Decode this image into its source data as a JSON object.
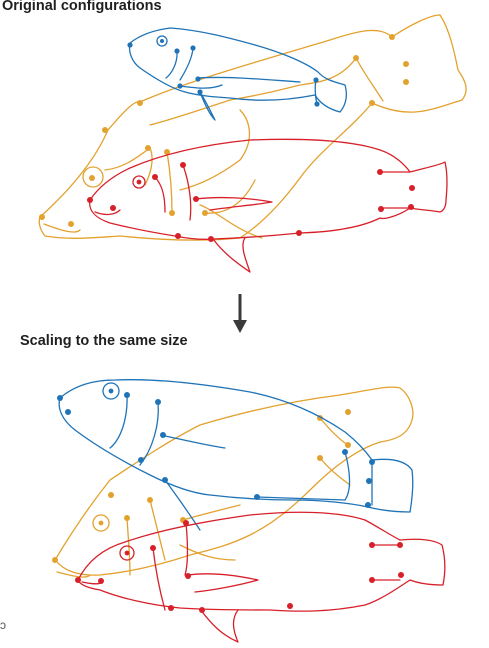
{
  "panels": {
    "top_title": "Original configurations",
    "bottom_title": "Scaling to the same size"
  },
  "stray_mark": "ɔ",
  "legend_colors": {
    "fish_blue": "#1f73b7",
    "fish_orange": "#e3a12e",
    "fish_red": "#d7202a",
    "arrow": "#3a3a3a"
  }
}
